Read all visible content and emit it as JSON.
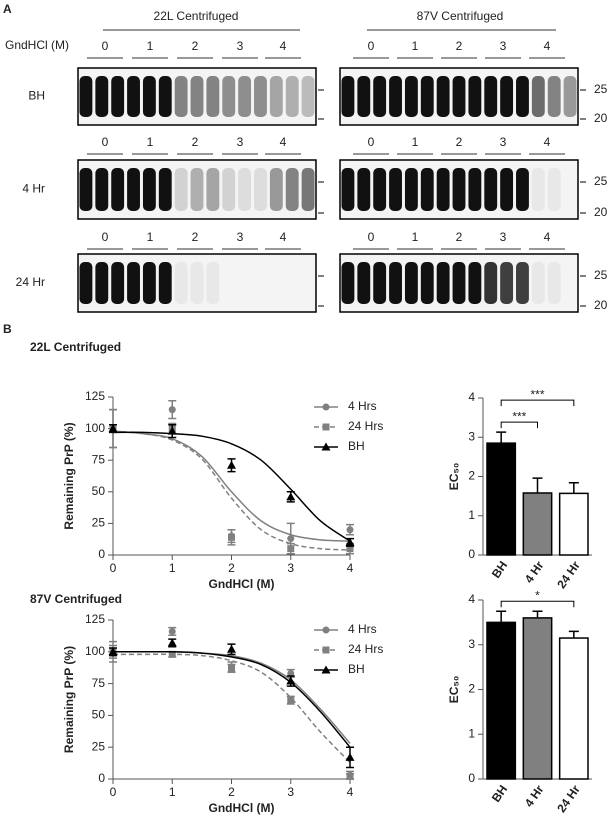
{
  "panel_labels": [
    "A",
    "B"
  ],
  "blots": {
    "groups": [
      "22L Centrifuged",
      "87V Centrifuged"
    ],
    "concentration_label": "GndHCl (M)",
    "concentrations": [
      0,
      1,
      2,
      3,
      4
    ],
    "rows": [
      "BH",
      "4 Hr",
      "24 Hr"
    ],
    "markers": [
      25,
      20
    ]
  },
  "chart_data": [
    {
      "type": "line",
      "title": "22L Centrifuged",
      "x_label": "GndHCl (M)",
      "y_label": "Remaining PrP  (%)",
      "x": [
        0,
        1,
        2,
        3,
        4
      ],
      "xlim": [
        0,
        4
      ],
      "xticks": [
        0,
        1,
        2,
        3,
        4
      ],
      "ylim": [
        0,
        125
      ],
      "yticks": [
        0,
        25,
        50,
        75,
        100,
        125
      ],
      "legend": "upper right",
      "series": [
        {
          "name": "4 Hrs",
          "color": "#808080",
          "marker": "circle",
          "dashed": false,
          "values": [
            100,
            115,
            15,
            13,
            20
          ],
          "errors": [
            15,
            7,
            5,
            12,
            4
          ],
          "fit": {
            "x": [
              0,
              0.5,
              1,
              1.5,
              2,
              2.5,
              3,
              3.5,
              4
            ],
            "y": [
              98,
              96,
              92,
              78,
              50,
              27,
              16,
              12,
              11
            ]
          }
        },
        {
          "name": "24 Hrs",
          "color": "#808080",
          "marker": "square",
          "dashed": true,
          "values": [
            100,
            100,
            14,
            5,
            5
          ],
          "errors": [
            15,
            4,
            6,
            4,
            4
          ],
          "fit": {
            "x": [
              0,
              0.5,
              1,
              1.5,
              2,
              2.5,
              3,
              3.5,
              4
            ],
            "y": [
              98,
              96,
              91,
              76,
              45,
              20,
              9,
              5,
              4
            ]
          }
        },
        {
          "name": "BH",
          "color": "#000000",
          "marker": "triangle",
          "dashed": false,
          "values": [
            100,
            98,
            71,
            46,
            10
          ],
          "errors": [
            3,
            5,
            5,
            4,
            3
          ],
          "fit": {
            "x": [
              0,
              0.5,
              1,
              1.5,
              2,
              2.5,
              3,
              3.5,
              4
            ],
            "y": [
              97,
              97,
              96,
              94,
              88,
              75,
              52,
              27,
              11
            ]
          }
        }
      ]
    },
    {
      "type": "bar",
      "y_label": "EC₅₀",
      "categories": [
        "BH",
        "4 Hr",
        "24 Hr"
      ],
      "values": [
        2.85,
        1.58,
        1.57
      ],
      "errors": [
        0.28,
        0.38,
        0.27
      ],
      "colors": [
        "#000000",
        "#808080",
        "#ffffff"
      ],
      "ylim": [
        0,
        4
      ],
      "yticks": [
        0,
        1,
        2,
        3,
        4
      ],
      "significance": [
        {
          "pair": [
            "BH",
            "4 Hr"
          ],
          "label": "***"
        },
        {
          "pair": [
            "BH",
            "24 Hr"
          ],
          "label": "***"
        }
      ]
    },
    {
      "type": "line",
      "title": "87V Centrifuged",
      "x_label": "GndHCl (M)",
      "y_label": "Remaining PrP  (%)",
      "x": [
        0,
        1,
        2,
        3,
        4
      ],
      "xlim": [
        0,
        4
      ],
      "xticks": [
        0,
        1,
        2,
        3,
        4
      ],
      "ylim": [
        0,
        125
      ],
      "yticks": [
        0,
        25,
        50,
        75,
        100,
        125
      ],
      "legend": "upper right",
      "series": [
        {
          "name": "4 Hrs",
          "color": "#808080",
          "marker": "circle",
          "dashed": false,
          "values": [
            100,
            116,
            88,
            83,
            3
          ],
          "errors": [
            8,
            3,
            4,
            3,
            3
          ],
          "fit": {
            "x": [
              0,
              0.5,
              1,
              1.5,
              2,
              2.5,
              3,
              3.5,
              4
            ],
            "y": [
              100,
              100,
              100,
              99,
              97,
              91,
              78,
              55,
              28
            ]
          }
        },
        {
          "name": "24 Hrs",
          "color": "#808080",
          "marker": "square",
          "dashed": true,
          "values": [
            100,
            98,
            87,
            62,
            2
          ],
          "errors": [
            5,
            2,
            3,
            3,
            2
          ],
          "fit": {
            "x": [
              0,
              0.5,
              1,
              1.5,
              2,
              2.5,
              3,
              3.5,
              4
            ],
            "y": [
              98,
              98,
              98,
              97,
              93,
              84,
              64,
              37,
              13
            ]
          }
        },
        {
          "name": "BH",
          "color": "#000000",
          "marker": "triangle",
          "dashed": false,
          "values": [
            100,
            107,
            102,
            77,
            17
          ],
          "errors": [
            3,
            3,
            4,
            4,
            8
          ],
          "fit": {
            "x": [
              0,
              0.5,
              1,
              1.5,
              2,
              2.5,
              3,
              3.5,
              4
            ],
            "y": [
              100,
              100,
              100,
              99,
              96,
              90,
              76,
              53,
              25
            ]
          }
        }
      ]
    },
    {
      "type": "bar",
      "y_label": "EC₅₀",
      "categories": [
        "BH",
        "4 Hr",
        "24 Hr"
      ],
      "values": [
        3.5,
        3.6,
        3.15
      ],
      "errors": [
        0.25,
        0.15,
        0.15
      ],
      "colors": [
        "#000000",
        "#808080",
        "#ffffff"
      ],
      "ylim": [
        0,
        4
      ],
      "yticks": [
        0,
        1,
        2,
        3,
        4
      ],
      "significance": [
        {
          "pair": [
            "BH",
            "24 Hr"
          ],
          "label": "*"
        }
      ]
    }
  ]
}
